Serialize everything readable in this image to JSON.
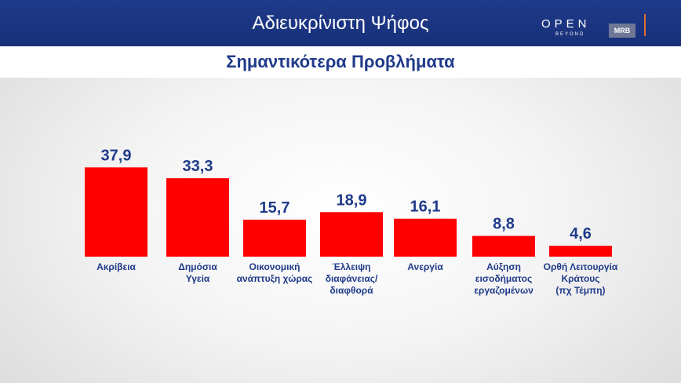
{
  "header": {
    "title": "Αδιευκρίνιστη Ψήφος",
    "subtitle": "Σημαντικότερα Προβλήματα",
    "logo_open": "OPEN",
    "logo_beyond": "BEYOND",
    "logo_mrb": "MRB"
  },
  "colors": {
    "bar": "#ff0000",
    "header_bg": "#1f3a8a",
    "text_blue": "#1f3a8a",
    "label_blue": "#1f3a8a",
    "accent_orange": "#e0702c"
  },
  "chart_data": {
    "type": "bar",
    "title": "Σημαντικότερα Προβλήματα",
    "categories": [
      [
        "Ακρίβεια"
      ],
      [
        "Δημόσια",
        "Υγεία"
      ],
      [
        "Οικονομική",
        "ανάπτυξη χώρας"
      ],
      [
        "Έλλειψη",
        "διαφάνειας/",
        "διαφθορά"
      ],
      [
        "Ανεργία"
      ],
      [
        "Αύξηση",
        "εισοδήματος",
        "εργαζομένων"
      ],
      [
        "Ορθή Λειτουργία",
        "Κράτους",
        "(πχ Τέμπη)"
      ]
    ],
    "values": [
      37.9,
      33.3,
      15.7,
      18.9,
      16.1,
      8.8,
      4.6
    ],
    "value_labels": [
      "37,9",
      "33,3",
      "15,7",
      "18,9",
      "16,1",
      "8,8",
      "4,6"
    ],
    "ylim": [
      0,
      40
    ],
    "grid": false,
    "legend": "none"
  }
}
